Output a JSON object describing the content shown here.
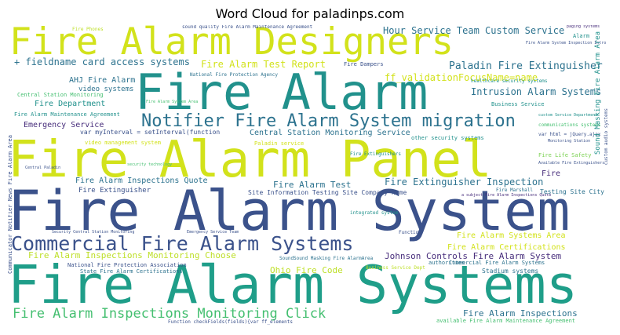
{
  "title": "Word Cloud for paladinps.com",
  "colors": {
    "yellow": "#d2e21b",
    "yellow2": "#bddf26",
    "lightgreen": "#7ad151",
    "green": "#44bf70",
    "teal": "#21918c",
    "teal2": "#1f9e89",
    "blue": "#2c728e",
    "navy": "#3b528b",
    "indigo": "#472d7b",
    "purple": "#440154"
  },
  "words": {
    "w1": "Fire Alarm Designers",
    "w2": "Fire Alarm",
    "w3": "Fire Alarm Panel",
    "w4": "Fire Alarm System",
    "w5": "Fire Alarm Systems",
    "w6": "Commercial Fire Alarm Systems",
    "w7": "Notifier Fire Alarm System migration",
    "w8": "Fire Alarm Inspections Monitoring Click",
    "w9": "Hour Service Team Custom Service",
    "w10": "Fire Alarm Test Report",
    "w11": "+ fieldname card access systems",
    "w12": "Paladin Fire Extinguisher",
    "w13": "ff_validationFocusName=name",
    "w14": "Intrusion Alarm Systems",
    "w15": "AHJ Fire Alarm",
    "w16": "video systems",
    "w17": "Central Station Monitoring",
    "w18": "Fire Department",
    "w19": "Fire Alarm Maintenance Agreement",
    "w20": "Emergency Service",
    "w21": "var myInterval = setInterval(function",
    "w22": "Central Station Monitoring Service",
    "w23": "Fire Alarm Inspections Quote",
    "w24": "Fire Extinguisher",
    "w25": "Fire Alarm Test",
    "w26": "Fire Extinguisher Inspection",
    "w27": "Site Information Testing Site Company Name",
    "w28": "Testing Site City",
    "w29": "Fire Alarm Systems Area",
    "w30": "Fire Alarm Certifications",
    "w31": "Johnson Controls Fire Alarm System",
    "w32": "Fire Alarm Inspections Monitoring Choose",
    "w33": "Ohio Fire Code",
    "w34": "National Fire Protection Association",
    "w35": "State Fire Alarm Certifications",
    "w36": "Commercial Fire Alarm Systems",
    "w37": "Stadium systems",
    "w38": "Fire Alarm Inspections",
    "w39": "available Fire Alarm Maintenance Agreement",
    "w40": "Alarm",
    "w41": "Business Service",
    "w42": "Fire Life Safety",
    "w43": "other security systems",
    "w44": "Fire",
    "w45": "Paladin service",
    "w46": "video management system",
    "w47": "Fire Dampers",
    "w48": "Fire Phones",
    "w49": "National Fire Protection Agency",
    "w50": "Fire Marshall",
    "w51": "Sound Masking Fire Alarm Area",
    "w52": "Communicator Notifier News Fire Alarm Area",
    "w53": "authorities",
    "w54": "Function",
    "w55": "integrated system",
    "w56": "healthcare security systems",
    "w57": "communications systems",
    "w58": "var html = jQuery.ajax",
    "w59": "sound quality Fire Alarm Maintenance Agreement",
    "w60": "paging systems",
    "w61": "custom audio systems",
    "w62": "Fire Extinguishers",
    "w63": "Business Service Dept",
    "w64": "Function checkFields(fields){var ff_elements",
    "w65": "SoundSound Masking Fire AlarmArea",
    "w66": "Emergency Service Team",
    "w67": "Security Central Station Monitoring",
    "w68": "Central Paladin",
    "w69": "security technology",
    "w70": "Fire Alarm System Area",
    "w71": "Monitoring Station",
    "w72": "Available Fire Extinguishers",
    "w73": "custom Service Department",
    "w74": "a subject Fire Alarm Inspections Quote",
    "w75": "Fire Alarm System Inspection Intro"
  }
}
